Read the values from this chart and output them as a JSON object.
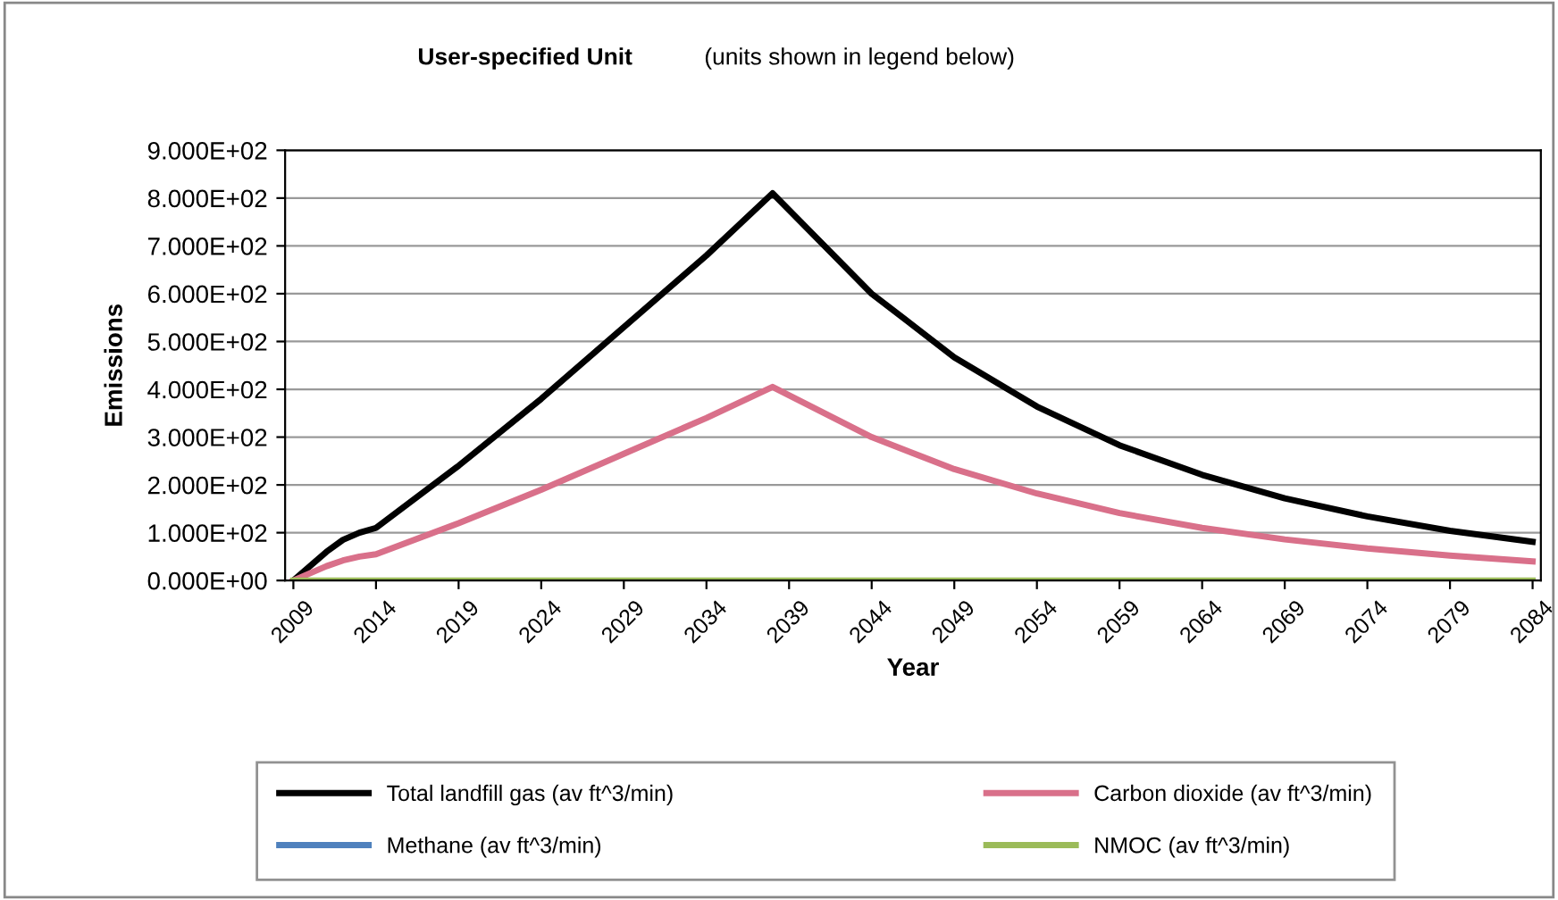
{
  "chart_data": {
    "type": "line",
    "title": "User-specified Unit",
    "subtitle": "(units shown in legend below)",
    "xlabel": "Year",
    "ylabel": "Emissions",
    "x": [
      2009,
      2010,
      2011,
      2012,
      2013,
      2014,
      2019,
      2024,
      2029,
      2034,
      2038,
      2044,
      2049,
      2054,
      2059,
      2064,
      2069,
      2074,
      2079,
      2084
    ],
    "series": [
      {
        "name": "Total landfill gas (av ft^3/min)",
        "color": "#000000",
        "values": [
          0,
          30,
          60,
          85,
          100,
          110,
          240,
          380,
          530,
          680,
          810,
          600,
          467,
          364,
          283,
          221,
          172,
          134,
          104,
          81
        ]
      },
      {
        "name": "Methane (av ft^3/min)",
        "color": "#4f81bd",
        "values": [
          null,
          null,
          null,
          null,
          null,
          null,
          null,
          null,
          null,
          null,
          null,
          null,
          null,
          null,
          null,
          null,
          null,
          null,
          null,
          null
        ]
      },
      {
        "name": "Carbon dioxide (av ft^3/min)",
        "color": "#d9708a",
        "values": [
          0,
          15,
          30,
          42,
          50,
          55,
          120,
          190,
          265,
          340,
          405,
          300,
          233,
          182,
          141,
          110,
          86,
          67,
          52,
          40
        ]
      },
      {
        "name": "NMOC (av ft^3/min)",
        "color": "#9bbb59",
        "values": [
          0,
          0,
          0,
          0,
          0,
          0,
          0,
          0,
          0,
          0,
          0,
          0,
          0,
          0,
          0,
          0,
          0,
          0,
          0,
          0
        ]
      }
    ],
    "xlim": [
      2008.5,
      2084.5
    ],
    "xticks": [
      2009,
      2014,
      2019,
      2024,
      2029,
      2034,
      2039,
      2044,
      2049,
      2054,
      2059,
      2064,
      2069,
      2074,
      2079,
      2084
    ],
    "ylim": [
      0,
      900
    ],
    "yticks": [
      {
        "value": 0,
        "label": "0.000E+00"
      },
      {
        "value": 100,
        "label": "1.000E+02"
      },
      {
        "value": 200,
        "label": "2.000E+02"
      },
      {
        "value": 300,
        "label": "3.000E+02"
      },
      {
        "value": 400,
        "label": "4.000E+02"
      },
      {
        "value": 500,
        "label": "5.000E+02"
      },
      {
        "value": 600,
        "label": "6.000E+02"
      },
      {
        "value": 700,
        "label": "7.000E+02"
      },
      {
        "value": 800,
        "label": "8.000E+02"
      },
      {
        "value": 900,
        "label": "9.000E+02"
      }
    ],
    "grid": "y",
    "legend": "bottom",
    "marker": "none",
    "line_style": "solid"
  }
}
